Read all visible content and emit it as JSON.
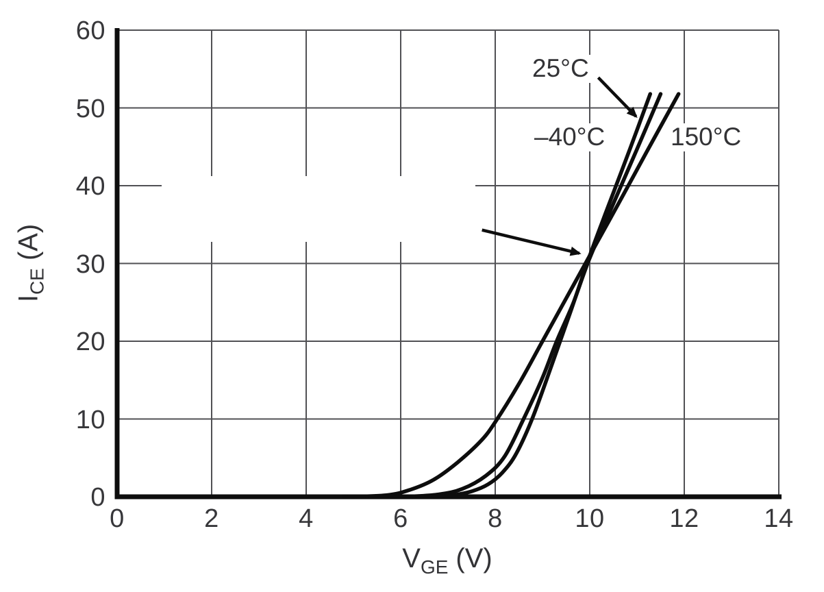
{
  "figure": {
    "background": "#ffffff",
    "grid_color": "#505054",
    "axis_color": "#0e0e0e",
    "curve_color": "#0d0d0d",
    "text_color": "#37373a"
  },
  "chart_data": {
    "type": "line",
    "title": "",
    "xlabel": {
      "symbol": "V",
      "subscript": "GE",
      "unit": "(V)"
    },
    "ylabel": {
      "symbol": "I",
      "subscript": "CE",
      "unit": "(A)"
    },
    "xlim": [
      0,
      14
    ],
    "ylim": [
      0,
      60
    ],
    "x_ticks": [
      0,
      2,
      4,
      6,
      8,
      10,
      12,
      14
    ],
    "y_ticks": [
      0,
      10,
      20,
      30,
      40,
      50,
      60
    ],
    "grid": "on",
    "legend": "inline curve labels",
    "series": [
      {
        "key": "25c",
        "name": "25°C",
        "points": [
          [
            6.1,
            0
          ],
          [
            6.8,
            0.3
          ],
          [
            7.3,
            1.0
          ],
          [
            7.8,
            2.7
          ],
          [
            8.2,
            5.2
          ],
          [
            8.6,
            10
          ],
          [
            9.0,
            15.3
          ],
          [
            9.3,
            20
          ],
          [
            9.65,
            24.9
          ],
          [
            10.0,
            30.7
          ],
          [
            10.5,
            37.7
          ],
          [
            11.0,
            44.7
          ],
          [
            11.5,
            51.8
          ]
        ]
      },
      {
        "key": "minus40c",
        "name": "–40°C",
        "points": [
          [
            6.7,
            0
          ],
          [
            7.1,
            0.2
          ],
          [
            7.5,
            0.7
          ],
          [
            7.85,
            1.6
          ],
          [
            8.15,
            3.1
          ],
          [
            8.45,
            5.6
          ],
          [
            8.8,
            10.3
          ],
          [
            9.2,
            17
          ],
          [
            9.6,
            23.9
          ],
          [
            10.0,
            31
          ],
          [
            10.4,
            37.5
          ],
          [
            10.85,
            44.7
          ],
          [
            11.28,
            51.8
          ]
        ]
      },
      {
        "key": "150c",
        "name": "150°C",
        "points": [
          [
            4.8,
            0
          ],
          [
            5.7,
            0.2
          ],
          [
            6.2,
            0.9
          ],
          [
            6.7,
            2.2
          ],
          [
            7.2,
            4.4
          ],
          [
            7.7,
            7.2
          ],
          [
            8.0,
            9.6
          ],
          [
            8.5,
            14.5
          ],
          [
            9.0,
            20
          ],
          [
            9.5,
            25.5
          ],
          [
            10.0,
            31
          ],
          [
            10.6,
            37.6
          ],
          [
            11.2,
            44.3
          ],
          [
            11.88,
            51.8
          ]
        ]
      }
    ],
    "crossover_point": {
      "vge": 10,
      "ice": 31
    },
    "annotations": [
      {
        "id": "crossover-arrow",
        "type": "arrow",
        "from": [
          7.72,
          34.3
        ],
        "to": [
          9.78,
          31.3
        ]
      },
      {
        "id": "label-arrow-25c",
        "type": "arrow",
        "from": [
          10.18,
          53.9
        ],
        "to": [
          10.98,
          48.9
        ]
      }
    ]
  }
}
